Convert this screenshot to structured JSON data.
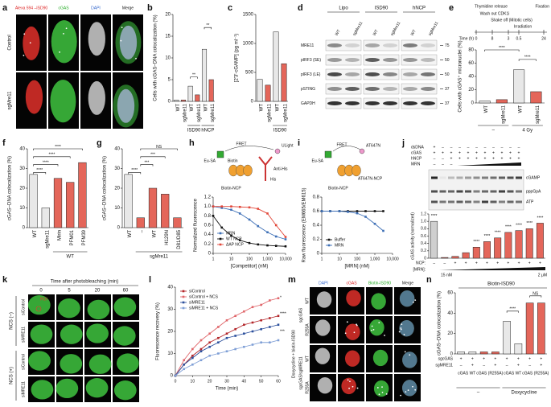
{
  "panel_a": {
    "letter": "a",
    "columns": [
      "Alexa 594 –ISD90",
      "cGAS",
      "DAPI",
      "Merge"
    ],
    "rows": [
      "Control",
      "sgMre11"
    ]
  },
  "panel_d": {
    "letter": "d",
    "groups": [
      "Lipo",
      "ISD90",
      "hNCP"
    ],
    "lanes": [
      "WT",
      "sgMre11",
      "WT",
      "sgMre11",
      "WT",
      "sgMre11"
    ],
    "rows": [
      "MRE11",
      "pIRF3 (SE)",
      "pIRF3 (LE)",
      "pSTING",
      "GAPDH"
    ],
    "markers": [
      75,
      50,
      50,
      37,
      37
    ]
  },
  "panel_k": {
    "letter": "k",
    "title": "Time after photobleaching (min)",
    "times": [
      0,
      5,
      20,
      60
    ],
    "roi": "ROI",
    "rows": [
      "siControl",
      "siMRE11",
      "siControl",
      "siMRE11"
    ],
    "groups": [
      "NCS (–)",
      "NCS (+)"
    ]
  },
  "panel_m": {
    "letter": "m",
    "columns": [
      "DAPI",
      "cGAS",
      "Biotin-ISD90",
      "Merge"
    ],
    "rows": [
      "WT",
      "R255A",
      "WT",
      "R255A"
    ],
    "groups": [
      "sgcGAS",
      "sgcGAS/sgMRE11"
    ],
    "side": "Doxycycline + biotin-ISD90"
  },
  "chart_data": [
    {
      "letter": "b",
      "type": "bar",
      "ylabel": "Cells with cGAS–DNA colocalization (%)",
      "categories": [
        "WT",
        "sgMre11",
        "WT",
        "sgMre11",
        "WT",
        "sgMre11"
      ],
      "values": [
        0.3,
        0.3,
        3.5,
        1.5,
        12,
        5
      ],
      "colors": [
        "#e8e8e8",
        "#e4665a",
        "#e8e8e8",
        "#e4665a",
        "#e8e8e8",
        "#e4665a"
      ],
      "groups": [
        null,
        null,
        "ISD90",
        "ISD90",
        "hNCP",
        "hNCP"
      ],
      "ylim": [
        0,
        20
      ],
      "yticks": [
        0,
        5,
        10,
        15,
        20
      ],
      "annotations": [
        "**",
        "**"
      ]
    },
    {
      "letter": "c",
      "type": "bar",
      "ylabel": "[2′3′-cGAMP] (pg ml⁻¹)",
      "categories": [
        "WT",
        "sgMre11",
        "WT",
        "sgMre11"
      ],
      "values": [
        380,
        280,
        1200,
        650
      ],
      "colors": [
        "#e8e8e8",
        "#e4665a",
        "#e8e8e8",
        "#e4665a"
      ],
      "groups": [
        null,
        null,
        "ISD90",
        "ISD90"
      ],
      "ylim": [
        0,
        1500
      ],
      "yticks": [
        0,
        500,
        1000,
        1500
      ]
    },
    {
      "letter": "e",
      "type": "bar",
      "ylabel": "Cells with cGAS⁺ micronuclei (%)",
      "categories": [
        "WT",
        "sgMre11",
        "WT",
        "sgMre11"
      ],
      "values": [
        3,
        5,
        50,
        17
      ],
      "colors": [
        "#e8e8e8",
        "#e4665a",
        "#e8e8e8",
        "#e4665a"
      ],
      "groups": [
        "–",
        "–",
        "4 Gy",
        "4 Gy"
      ],
      "ylim": [
        0,
        80
      ],
      "yticks": [
        0,
        20,
        40,
        60,
        80
      ],
      "annotations": [
        "****",
        "****"
      ],
      "timeline": {
        "labels": [
          "Thymidine release",
          "Wash out CDK1i",
          "Shake off (Mitotic cells)",
          "Irradiation",
          "Fixation"
        ],
        "time_label": "Time (h)",
        "times": [
          0,
          8,
          3,
          0.5,
          24
        ]
      }
    },
    {
      "letter": "f",
      "type": "bar",
      "ylabel": "cGAS–DNA colocalization (%)",
      "categories": [
        "WT",
        "sgMre11",
        "Mirin",
        "PFM01",
        "PFM39"
      ],
      "values": [
        27,
        10,
        25,
        23,
        33
      ],
      "colors": [
        "#e8e8e8",
        "#e8e8e8",
        "#e4665a",
        "#e4665a",
        "#e4665a"
      ],
      "groups": [
        null,
        null,
        "WT",
        "WT",
        "WT"
      ],
      "ylim": [
        0,
        40
      ],
      "yticks": [
        0,
        10,
        20,
        30,
        40
      ],
      "annotations": [
        "****",
        "****",
        "****",
        "****"
      ]
    },
    {
      "letter": "g",
      "type": "bar",
      "ylabel": "cGAS–DNA colocalization (%)",
      "categories": [
        "WT",
        "–",
        "WT",
        "H129N",
        "D81/D85"
      ],
      "values": [
        27,
        5,
        20,
        17,
        5
      ],
      "colors": [
        "#e8e8e8",
        "#e4665a",
        "#e4665a",
        "#e4665a",
        "#e4665a"
      ],
      "groups": [
        null,
        "sgMre11",
        "sgMre11",
        "sgMre11",
        "sgMre11"
      ],
      "ylim": [
        0,
        40
      ],
      "yticks": [
        0,
        10,
        20,
        30,
        40
      ],
      "annotations": [
        "****",
        "***",
        "***",
        "NS"
      ]
    },
    {
      "letter": "h",
      "type": "line",
      "xscale": "log",
      "diagram": [
        "Eu-SA",
        "FRET",
        "ULight",
        "Biotin",
        "Anti-His",
        "His",
        "Biotin-NCP"
      ],
      "ylabel": "Normalized fluorescence",
      "xlabel": "[Competitor] (nM)",
      "x": [
        1,
        3,
        10,
        30,
        100,
        300,
        1000,
        3000,
        10000
      ],
      "series": [
        {
          "name": "MRN",
          "color": "#3d6fb6",
          "values": [
            1.0,
            0.97,
            0.93,
            0.85,
            0.72,
            0.58,
            0.45,
            0.36,
            0.3
          ]
        },
        {
          "name": "WT NCP",
          "color": "#111111",
          "values": [
            0.8,
            0.55,
            0.38,
            0.28,
            0.22,
            0.19,
            0.17,
            0.16,
            0.15
          ]
        },
        {
          "name": "ΔAP NCP",
          "color": "#e2483a",
          "values": [
            1.0,
            1.0,
            1.0,
            0.99,
            0.98,
            0.95,
            0.85,
            0.6,
            0.35
          ]
        }
      ],
      "xlim": [
        1,
        10000
      ],
      "xticks": [
        1,
        10,
        100,
        {
          "value": 1000,
          "label": "1,000"
        },
        {
          "value": 10000,
          "label": "10,000"
        }
      ],
      "ylim": [
        0,
        1.2
      ],
      "yticks": [
        0,
        0.2,
        0.4,
        0.6,
        0.8,
        {
          "value": 1,
          "label": "1.0"
        },
        1.2
      ]
    },
    {
      "letter": "i",
      "type": "line",
      "xscale": "log",
      "diagram": [
        "FRET",
        "AT647N",
        "Eu-SA",
        "AT647N-NCP",
        "Biotin-NCP"
      ],
      "ylabel": "Raw fluorescence (EM665/EM615)",
      "xlabel": "[MRN] (nM)",
      "x": [
        1,
        3,
        10,
        30,
        100,
        300,
        1000,
        3000
      ],
      "series": [
        {
          "name": "Buffer",
          "color": "#111111",
          "values": [
            0.6,
            0.6,
            0.6,
            0.6,
            0.6,
            0.6,
            0.6,
            0.6
          ]
        },
        {
          "name": "MRN",
          "color": "#3d6fb6",
          "values": [
            0.6,
            0.6,
            0.6,
            0.59,
            0.57,
            0.52,
            0.42,
            0.32
          ]
        }
      ],
      "xlim": [
        1,
        10000
      ],
      "xticks": [
        1,
        10,
        100,
        {
          "value": 1000,
          "label": "1,000"
        },
        {
          "value": 10000,
          "label": "10,000"
        }
      ],
      "ylim": [
        0,
        0.8
      ],
      "yticks": [
        0,
        0.2,
        0.4,
        0.6,
        0.8
      ]
    },
    {
      "letter": "j",
      "type": "bar",
      "ylabel": "cGAS activity (normalized)",
      "categories": [
        "–",
        "–",
        "+",
        "+",
        "+",
        "+",
        "+",
        "+",
        "+",
        "+",
        "+"
      ],
      "values": [
        1.0,
        0.02,
        0.05,
        0.15,
        0.3,
        0.45,
        0.55,
        0.7,
        0.75,
        0.8,
        0.95
      ],
      "colors": [
        "#cfcfcf",
        "#e4665a",
        "#e4665a",
        "#e4665a",
        "#e4665a",
        "#e4665a",
        "#e4665a",
        "#e4665a",
        "#e4665a",
        "#e4665a",
        "#e4665a"
      ],
      "ylim": [
        0,
        1.2
      ],
      "yticks": [
        0,
        0.2,
        0.4,
        0.6,
        0.8,
        {
          "value": 1,
          "label": "1.0"
        },
        1.2
      ],
      "annotations": [
        "****",
        "****",
        "****",
        "****",
        "****",
        "****",
        "****",
        "****"
      ],
      "ncp_label": "NCP:",
      "mrn_label": "[MRN]:",
      "mrn_range": [
        "15 nM",
        "2 μM"
      ],
      "gel": {
        "rows": [
          {
            "name": "dsDNA",
            "signs": [
              "+",
              "–",
              "–",
              "–",
              "–",
              "–",
              "–",
              "–",
              "–",
              "–",
              "–"
            ]
          },
          {
            "name": "cGAS",
            "signs": [
              "+",
              "+",
              "+",
              "+",
              "+",
              "+",
              "+",
              "+",
              "+",
              "+",
              "+"
            ]
          },
          {
            "name": "hNCP",
            "signs": [
              "–",
              "–",
              "+",
              "+",
              "+",
              "+",
              "+",
              "+",
              "+",
              "+",
              "+"
            ]
          },
          {
            "name": "MRN",
            "signs": [
              "–",
              "–",
              "–"
            ]
          }
        ],
        "bands": [
          "cGAMP",
          "pppGpA",
          "ATP"
        ]
      }
    },
    {
      "letter": "l",
      "type": "line",
      "ylabel": "Fluorescence recovery (%)",
      "xlabel": "Time (min)",
      "x": [
        0,
        5,
        10,
        15,
        20,
        25,
        30,
        35,
        40,
        45,
        50,
        55,
        60
      ],
      "series": [
        {
          "name": "siControl",
          "color": "#b3262a",
          "values": [
            0,
            5,
            9,
            12,
            15,
            17,
            19,
            21,
            23,
            24,
            25,
            26,
            27
          ]
        },
        {
          "name": "siControl + NCS",
          "color": "#e0666a",
          "values": [
            0,
            7,
            12,
            16,
            19,
            22,
            25,
            27,
            29,
            31,
            32,
            34,
            35
          ]
        },
        {
          "name": "siMRE11",
          "color": "#2b4f9c",
          "values": [
            0,
            5,
            8,
            11,
            13,
            15,
            17,
            18,
            19,
            20,
            21,
            22,
            23
          ]
        },
        {
          "name": "siMRE11 + NCS",
          "color": "#7f9fd6",
          "values": [
            0,
            3,
            5,
            7,
            9,
            10,
            11,
            12,
            13,
            14,
            15,
            15,
            16
          ]
        }
      ],
      "xlim": [
        0,
        60
      ],
      "xticks": [
        0,
        10,
        20,
        30,
        40,
        50,
        60
      ],
      "ylim": [
        0,
        40
      ],
      "yticks": [
        0,
        10,
        20,
        30,
        40
      ],
      "annotations": [
        "*",
        "****",
        "***"
      ]
    },
    {
      "letter": "n",
      "type": "bar",
      "title": "Biotin-ISD90",
      "ylabel": "cGAS–DNA colocalization (%)",
      "categories": [
        "cGAS WT",
        "cGAS WT",
        "cGAS (R255A)",
        "cGAS (R255A)",
        "cGAS WT",
        "cGAS WT",
        "cGAS (R255A)",
        "cGAS (R255A)"
      ],
      "values": [
        2,
        2,
        2,
        2,
        32,
        10,
        50,
        50
      ],
      "colors": [
        "#e8e8e8",
        "#e8e8e8",
        "#e4665a",
        "#e4665a",
        "#e8e8e8",
        "#e8e8e8",
        "#e4665a",
        "#e4665a"
      ],
      "groups": [
        "–",
        "–",
        "–",
        "–",
        "Doxycycline",
        "Doxycycline",
        "Doxycycline",
        "Doxycycline"
      ],
      "rows": [
        {
          "name": "sgcGAS",
          "signs": [
            "+",
            "+",
            "+",
            "+",
            "+",
            "+",
            "+",
            "+"
          ]
        },
        {
          "name": "sgMRE11",
          "signs": [
            "–",
            "+",
            "–",
            "+",
            "–",
            "+",
            "–",
            "+"
          ]
        }
      ],
      "ylim": [
        0,
        60
      ],
      "yticks": [
        0,
        20,
        40,
        60
      ],
      "annotations": [
        "****",
        "NS"
      ]
    }
  ]
}
